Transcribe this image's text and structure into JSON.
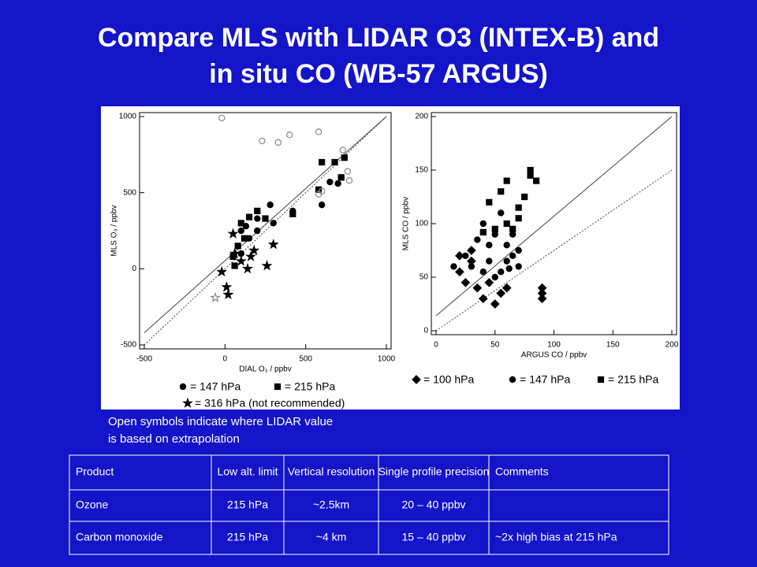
{
  "title": [
    "Compare MLS with LIDAR O3 (INTEX-B) and",
    "in situ CO (WB-57 ARGUS)"
  ],
  "chart_data": [
    {
      "type": "scatter",
      "xlabel": "DIAL O₃ / ppbv",
      "ylabel": "MLS O₃ / ppbv",
      "xlim": [
        -500,
        1000
      ],
      "ylim": [
        -500,
        1000
      ],
      "xticks": [
        -500,
        0,
        500,
        1000
      ],
      "yticks": [
        -500,
        0,
        500,
        1000
      ],
      "lines": [
        {
          "style": "solid",
          "x": [
            -500,
            1000
          ],
          "y": [
            -420,
            1000
          ]
        },
        {
          "style": "dotted",
          "x": [
            -500,
            1000
          ],
          "y": [
            -500,
            1000
          ]
        }
      ],
      "series": [
        {
          "name": "= 147 hPa",
          "marker": "circle",
          "filled": true,
          "color": "#000000",
          "x": [
            100,
            150,
            200,
            300,
            280,
            420,
            600,
            650,
            700,
            720,
            100,
            130,
            200
          ],
          "y": [
            100,
            200,
            250,
            300,
            420,
            380,
            420,
            570,
            560,
            600,
            250,
            280,
            330
          ]
        },
        {
          "name": "= 215 hPa",
          "marker": "square",
          "filled": true,
          "color": "#000000",
          "x": [
            50,
            80,
            100,
            150,
            200,
            250,
            420,
            580,
            600,
            680,
            740,
            720,
            120,
            60
          ],
          "y": [
            80,
            150,
            300,
            340,
            380,
            330,
            360,
            520,
            700,
            700,
            730,
            600,
            200,
            20
          ]
        },
        {
          "name": "= 316 hPa (not recommended)",
          "marker": "star",
          "filled": true,
          "color": "#000000",
          "x": [
            -20,
            10,
            20,
            60,
            100,
            140,
            180,
            300,
            260,
            160,
            50
          ],
          "y": [
            -20,
            -120,
            -170,
            100,
            50,
            0,
            120,
            160,
            20,
            80,
            230
          ]
        },
        {
          "marker": "circle",
          "filled": false,
          "color": "#888888",
          "x": [
            -20,
            230,
            330,
            580,
            730,
            760,
            770,
            600,
            580,
            400
          ],
          "y": [
            990,
            840,
            830,
            900,
            780,
            640,
            580,
            510,
            490,
            880
          ]
        },
        {
          "marker": "star",
          "filled": false,
          "color": "#888888",
          "x": [
            -60
          ],
          "y": [
            -190
          ]
        }
      ]
    },
    {
      "type": "scatter",
      "xlabel": "ARGUS CO / ppbv",
      "ylabel": "MLS CO / ppbv",
      "xlim": [
        0,
        200
      ],
      "ylim": [
        0,
        200
      ],
      "xticks": [
        0,
        50,
        100,
        150,
        200
      ],
      "yticks": [
        0,
        50,
        100,
        150,
        200
      ],
      "lines": [
        {
          "style": "solid",
          "x": [
            0,
            200
          ],
          "y": [
            14,
            200
          ]
        },
        {
          "style": "dotted",
          "x": [
            0,
            200
          ],
          "y": [
            0,
            150
          ]
        }
      ],
      "series": [
        {
          "name": "= 100 hPa",
          "marker": "diamond",
          "filled": true,
          "color": "#000000",
          "x": [
            20,
            25,
            30,
            35,
            40,
            45,
            50,
            55,
            60,
            90,
            90,
            90,
            30,
            20
          ],
          "y": [
            55,
            45,
            65,
            40,
            30,
            45,
            25,
            35,
            40,
            40,
            30,
            35,
            75,
            70
          ]
        },
        {
          "name": "= 147 hPa",
          "marker": "circle",
          "filled": true,
          "color": "#000000",
          "x": [
            15,
            25,
            30,
            40,
            45,
            50,
            55,
            60,
            65,
            70,
            35,
            40,
            50,
            60,
            65,
            55,
            70,
            45,
            62
          ],
          "y": [
            60,
            70,
            60,
            55,
            65,
            50,
            55,
            65,
            70,
            60,
            85,
            100,
            90,
            80,
            90,
            110,
            75,
            80,
            58
          ]
        },
        {
          "name": "= 215 hPa",
          "marker": "square",
          "filled": true,
          "color": "#000000",
          "x": [
            45,
            55,
            60,
            80,
            80,
            70,
            65,
            75,
            85,
            60,
            50,
            40,
            70
          ],
          "y": [
            120,
            130,
            140,
            150,
            145,
            105,
            95,
            125,
            140,
            100,
            95,
            92,
            115
          ]
        }
      ]
    }
  ],
  "note": [
    "Open symbols indicate where LIDAR value",
    "is based on extrapolation"
  ],
  "table": {
    "header": [
      "Product",
      "Low alt. limit",
      "Vertical resolution",
      "Single profile precision",
      "Comments"
    ],
    "rows": [
      [
        "Ozone",
        "215 hPa",
        "~2.5km",
        "20 – 40 ppbv"
      ],
      [
        "Carbon monoxide",
        "215 hPa",
        "~4 km",
        "15 – 40 ppbv",
        "~2x high bias at 215 hPa"
      ]
    ]
  }
}
